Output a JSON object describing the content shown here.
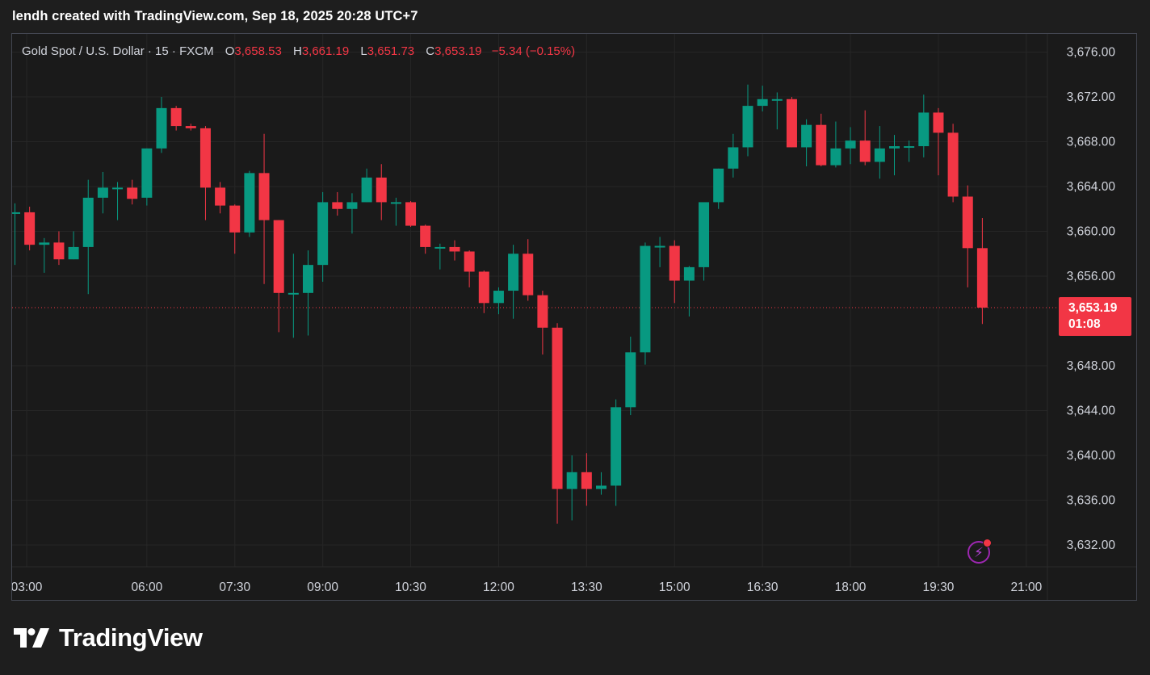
{
  "header": {
    "caption": "lendh created with TradingView.com, Sep 18, 2025 20:28 UTC+7"
  },
  "legend": {
    "symbol": "Gold Spot / U.S. Dollar · 15 · FXCM",
    "open_label": "O",
    "open": "3,658.53",
    "high_label": "H",
    "high": "3,661.19",
    "low_label": "L",
    "low": "3,651.73",
    "close_label": "C",
    "close": "3,653.19",
    "change": "−5.34 (−0.15%)"
  },
  "price_tag": {
    "price": "3,653.19",
    "countdown": "01:08"
  },
  "footer": {
    "brand": "TradingView"
  },
  "colors": {
    "up": "#089981",
    "down": "#f23645",
    "background": "#1a1a1a",
    "grid": "#262626",
    "text": "#d1d4dc",
    "price_line": "#f23645"
  },
  "icons": {
    "alert": "lightning-bolt-icon",
    "logo": "tradingview-logo-icon"
  },
  "chart_data": {
    "type": "candlestick",
    "title": "Gold Spot / U.S. Dollar · 15 · FXCM",
    "interval_minutes": 15,
    "ylim": [
      3630,
      3677
    ],
    "grid": true,
    "y_ticks": [
      "3,676.00",
      "3,672.00",
      "3,668.00",
      "3,664.00",
      "3,660.00",
      "3,656.00",
      "3,648.00",
      "3,644.00",
      "3,640.00",
      "3,636.00",
      "3,632.00"
    ],
    "x_ticks": [
      "03:00",
      "06:00",
      "07:30",
      "09:00",
      "10:30",
      "12:00",
      "13:30",
      "15:00",
      "16:30",
      "18:00",
      "19:30",
      "21:00"
    ],
    "last_price": 3653.19,
    "candles": [
      {
        "o": 3661.7,
        "h": 3662.5,
        "l": 3657.0,
        "c": 3661.7
      },
      {
        "o": 3661.7,
        "h": 3662.2,
        "l": 3658.3,
        "c": 3658.8
      },
      {
        "o": 3658.8,
        "h": 3659.4,
        "l": 3656.3,
        "c": 3659.0
      },
      {
        "o": 3659.0,
        "h": 3660.0,
        "l": 3657.0,
        "c": 3657.5
      },
      {
        "o": 3657.5,
        "h": 3660.0,
        "l": 3657.5,
        "c": 3658.6
      },
      {
        "o": 3658.6,
        "h": 3664.6,
        "l": 3654.4,
        "c": 3663.0
      },
      {
        "o": 3663.0,
        "h": 3665.3,
        "l": 3661.6,
        "c": 3663.9
      },
      {
        "o": 3663.9,
        "h": 3664.4,
        "l": 3661.0,
        "c": 3663.9
      },
      {
        "o": 3663.9,
        "h": 3664.6,
        "l": 3662.4,
        "c": 3662.9
      },
      {
        "o": 3663.0,
        "h": 3667.4,
        "l": 3662.3,
        "c": 3667.4
      },
      {
        "o": 3667.4,
        "h": 3672.0,
        "l": 3667.0,
        "c": 3671.0
      },
      {
        "o": 3671.0,
        "h": 3671.2,
        "l": 3669.0,
        "c": 3669.4
      },
      {
        "o": 3669.4,
        "h": 3669.6,
        "l": 3669.0,
        "c": 3669.2
      },
      {
        "o": 3669.2,
        "h": 3669.4,
        "l": 3661.0,
        "c": 3663.9
      },
      {
        "o": 3663.9,
        "h": 3664.4,
        "l": 3661.6,
        "c": 3662.3
      },
      {
        "o": 3662.3,
        "h": 3662.4,
        "l": 3658.0,
        "c": 3659.9
      },
      {
        "o": 3659.9,
        "h": 3665.4,
        "l": 3659.5,
        "c": 3665.2
      },
      {
        "o": 3665.2,
        "h": 3668.7,
        "l": 3655.3,
        "c": 3661.0
      },
      {
        "o": 3661.0,
        "h": 3661.0,
        "l": 3651.0,
        "c": 3654.5
      },
      {
        "o": 3654.5,
        "h": 3658.0,
        "l": 3650.5,
        "c": 3654.5
      },
      {
        "o": 3654.5,
        "h": 3658.3,
        "l": 3650.7,
        "c": 3657.0
      },
      {
        "o": 3657.0,
        "h": 3663.5,
        "l": 3655.5,
        "c": 3662.6
      },
      {
        "o": 3662.6,
        "h": 3663.5,
        "l": 3661.4,
        "c": 3662.0
      },
      {
        "o": 3662.0,
        "h": 3663.4,
        "l": 3659.8,
        "c": 3662.6
      },
      {
        "o": 3662.6,
        "h": 3665.6,
        "l": 3662.6,
        "c": 3664.8
      },
      {
        "o": 3664.8,
        "h": 3666.0,
        "l": 3661.0,
        "c": 3662.6
      },
      {
        "o": 3662.6,
        "h": 3663.0,
        "l": 3660.5,
        "c": 3662.6
      },
      {
        "o": 3662.6,
        "h": 3662.7,
        "l": 3660.4,
        "c": 3660.5
      },
      {
        "o": 3660.5,
        "h": 3660.6,
        "l": 3658.0,
        "c": 3658.6
      },
      {
        "o": 3658.6,
        "h": 3658.9,
        "l": 3656.6,
        "c": 3658.6
      },
      {
        "o": 3658.6,
        "h": 3659.2,
        "l": 3657.4,
        "c": 3658.2
      },
      {
        "o": 3658.2,
        "h": 3658.3,
        "l": 3655.0,
        "c": 3656.4
      },
      {
        "o": 3656.4,
        "h": 3656.5,
        "l": 3652.7,
        "c": 3653.6
      },
      {
        "o": 3653.6,
        "h": 3655.0,
        "l": 3652.6,
        "c": 3654.7
      },
      {
        "o": 3654.7,
        "h": 3658.8,
        "l": 3652.2,
        "c": 3658.0
      },
      {
        "o": 3658.0,
        "h": 3659.3,
        "l": 3653.8,
        "c": 3654.3
      },
      {
        "o": 3654.3,
        "h": 3654.7,
        "l": 3649.0,
        "c": 3651.4
      },
      {
        "o": 3651.4,
        "h": 3651.8,
        "l": 3633.9,
        "c": 3637.0
      },
      {
        "o": 3637.0,
        "h": 3640.0,
        "l": 3634.2,
        "c": 3638.5
      },
      {
        "o": 3638.5,
        "h": 3640.2,
        "l": 3635.5,
        "c": 3637.0
      },
      {
        "o": 3637.0,
        "h": 3638.5,
        "l": 3636.5,
        "c": 3637.3
      },
      {
        "o": 3637.3,
        "h": 3645.0,
        "l": 3635.5,
        "c": 3644.3
      },
      {
        "o": 3644.3,
        "h": 3650.6,
        "l": 3643.6,
        "c": 3649.2
      },
      {
        "o": 3649.2,
        "h": 3659.0,
        "l": 3648.1,
        "c": 3658.7
      },
      {
        "o": 3658.7,
        "h": 3659.5,
        "l": 3656.8,
        "c": 3658.7
      },
      {
        "o": 3658.7,
        "h": 3659.2,
        "l": 3653.6,
        "c": 3655.6
      },
      {
        "o": 3655.6,
        "h": 3656.9,
        "l": 3652.4,
        "c": 3656.8
      },
      {
        "o": 3656.8,
        "h": 3662.5,
        "l": 3655.6,
        "c": 3662.6
      },
      {
        "o": 3662.6,
        "h": 3665.6,
        "l": 3662.0,
        "c": 3665.6
      },
      {
        "o": 3665.6,
        "h": 3668.7,
        "l": 3664.8,
        "c": 3667.5
      },
      {
        "o": 3667.5,
        "h": 3673.1,
        "l": 3666.7,
        "c": 3671.2
      },
      {
        "o": 3671.2,
        "h": 3673.0,
        "l": 3670.7,
        "c": 3671.8
      },
      {
        "o": 3671.8,
        "h": 3672.4,
        "l": 3669.1,
        "c": 3671.8
      },
      {
        "o": 3671.8,
        "h": 3672.0,
        "l": 3667.5,
        "c": 3667.5
      },
      {
        "o": 3667.5,
        "h": 3670.0,
        "l": 3665.8,
        "c": 3669.5
      },
      {
        "o": 3669.5,
        "h": 3670.5,
        "l": 3665.8,
        "c": 3665.9
      },
      {
        "o": 3665.9,
        "h": 3669.8,
        "l": 3665.7,
        "c": 3667.4
      },
      {
        "o": 3667.4,
        "h": 3669.3,
        "l": 3666.0,
        "c": 3668.1
      },
      {
        "o": 3668.1,
        "h": 3670.8,
        "l": 3665.9,
        "c": 3666.2
      },
      {
        "o": 3666.2,
        "h": 3669.4,
        "l": 3664.7,
        "c": 3667.4
      },
      {
        "o": 3667.4,
        "h": 3668.6,
        "l": 3665.0,
        "c": 3667.6
      },
      {
        "o": 3667.6,
        "h": 3668.1,
        "l": 3666.2,
        "c": 3667.6
      },
      {
        "o": 3667.6,
        "h": 3672.2,
        "l": 3666.6,
        "c": 3670.6
      },
      {
        "o": 3670.6,
        "h": 3671.0,
        "l": 3665.0,
        "c": 3668.8
      },
      {
        "o": 3668.8,
        "h": 3669.6,
        "l": 3662.6,
        "c": 3663.1
      },
      {
        "o": 3663.1,
        "h": 3664.1,
        "l": 3655.0,
        "c": 3658.5
      },
      {
        "o": 3658.5,
        "h": 3661.19,
        "l": 3651.73,
        "c": 3653.19
      }
    ]
  }
}
